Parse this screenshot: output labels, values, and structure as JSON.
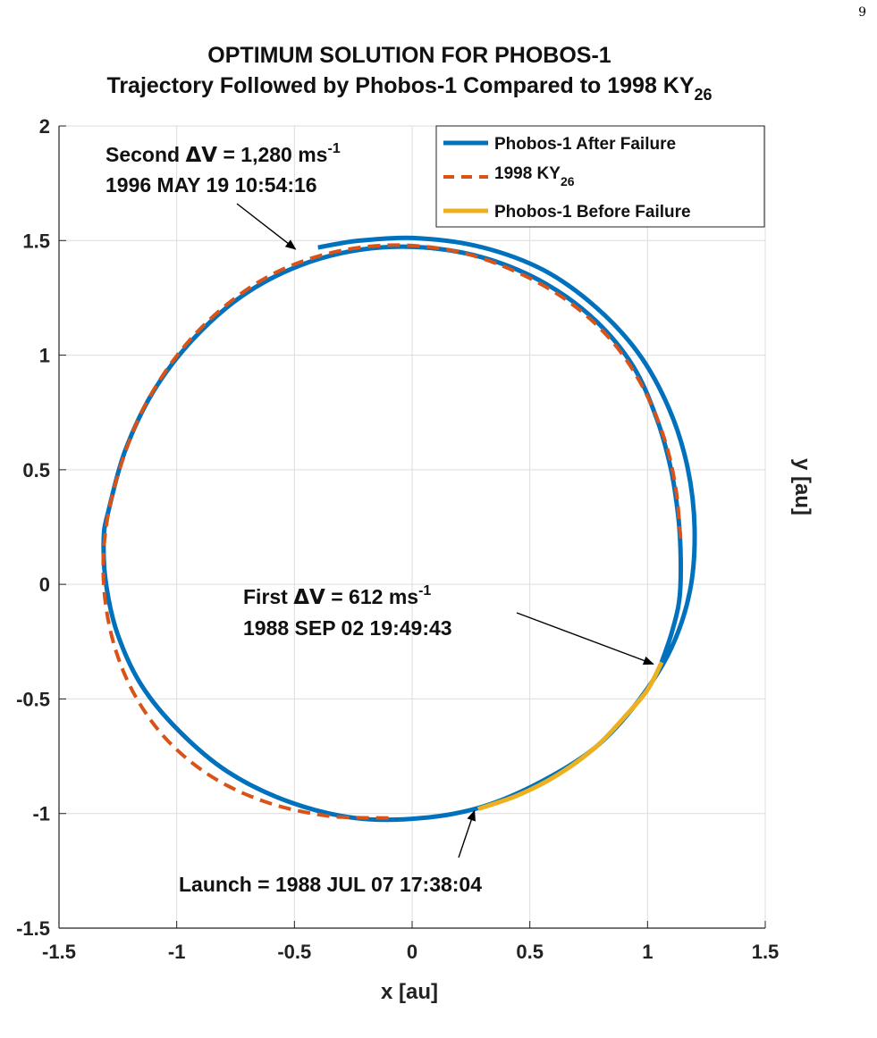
{
  "page": {
    "page_number": "9"
  },
  "chart_data": {
    "type": "line",
    "title": "OPTIMUM SOLUTION FOR PHOBOS-1",
    "subtitle": "Trajectory Followed by Phobos-1 Compared to 1998 KY",
    "subtitle_subscript": "26",
    "xlabel": "x [au]",
    "ylabel": "y [au]",
    "xlim": [
      -1.5,
      1.5
    ],
    "ylim": [
      -1.5,
      2
    ],
    "xticks": [
      -1.5,
      -1,
      -0.5,
      0,
      0.5,
      1,
      1.5
    ],
    "xtick_labels": [
      "-1.5",
      "-1",
      "-0.5",
      "0",
      "0.5",
      "1",
      "1.5"
    ],
    "yticks": [
      -1.5,
      -1,
      -0.5,
      0,
      0.5,
      1,
      1.5,
      2
    ],
    "ytick_labels": [
      "-1.5",
      "-1",
      "-0.5",
      "0",
      "0.5",
      "1",
      "1.5",
      "2"
    ],
    "grid": true,
    "legend_position": "top-right",
    "legend": [
      {
        "label": "Phobos-1 After Failure",
        "subscript": "",
        "color": "#0072BD",
        "style": "solid"
      },
      {
        "label": "1998 KY",
        "subscript": "26",
        "color": "#D95319",
        "style": "dashed"
      },
      {
        "label": "Phobos-1 Before Failure",
        "subscript": "",
        "color": "#EDB120",
        "style": "solid"
      }
    ],
    "series": [
      {
        "name": "Phobos-1 After Failure",
        "color": "#0072BD",
        "style": "solid",
        "points": [
          [
            1.06,
            -0.34
          ],
          [
            1.1,
            -0.22
          ],
          [
            1.13,
            -0.1
          ],
          [
            1.14,
            0.0
          ],
          [
            1.14,
            0.15
          ],
          [
            1.13,
            0.3
          ],
          [
            1.1,
            0.5
          ],
          [
            1.04,
            0.72
          ],
          [
            0.94,
            0.95
          ],
          [
            0.78,
            1.15
          ],
          [
            0.57,
            1.31
          ],
          [
            0.32,
            1.42
          ],
          [
            0.05,
            1.47
          ],
          [
            -0.22,
            1.46
          ],
          [
            -0.48,
            1.39
          ],
          [
            -0.72,
            1.26
          ],
          [
            -0.93,
            1.07
          ],
          [
            -1.1,
            0.84
          ],
          [
            -1.22,
            0.58
          ],
          [
            -1.29,
            0.32
          ],
          [
            -1.31,
            0.2
          ],
          [
            -1.3,
            0.0
          ],
          [
            -1.25,
            -0.22
          ],
          [
            -1.15,
            -0.44
          ],
          [
            -0.99,
            -0.64
          ],
          [
            -0.78,
            -0.82
          ],
          [
            -0.52,
            -0.95
          ],
          [
            -0.24,
            -1.02
          ],
          [
            0.04,
            -1.02
          ],
          [
            0.3,
            -0.97
          ],
          [
            0.55,
            -0.86
          ],
          [
            0.78,
            -0.71
          ],
          [
            0.96,
            -0.51
          ],
          [
            1.1,
            -0.28
          ],
          [
            1.18,
            -0.03
          ],
          [
            1.2,
            0.24
          ],
          [
            1.17,
            0.51
          ],
          [
            1.09,
            0.77
          ],
          [
            0.96,
            1.01
          ],
          [
            0.78,
            1.21
          ],
          [
            0.56,
            1.37
          ],
          [
            0.3,
            1.47
          ],
          [
            0.03,
            1.51
          ],
          [
            -0.22,
            1.5
          ],
          [
            -0.4,
            1.47
          ]
        ]
      },
      {
        "name": "1998 KY26",
        "color": "#D95319",
        "style": "dashed",
        "points": [
          [
            1.14,
            0.2
          ],
          [
            1.12,
            0.42
          ],
          [
            1.07,
            0.64
          ],
          [
            0.98,
            0.86
          ],
          [
            0.85,
            1.06
          ],
          [
            0.67,
            1.23
          ],
          [
            0.45,
            1.36
          ],
          [
            0.2,
            1.45
          ],
          [
            -0.07,
            1.48
          ],
          [
            -0.33,
            1.45
          ],
          [
            -0.58,
            1.36
          ],
          [
            -0.8,
            1.21
          ],
          [
            -0.99,
            1.01
          ],
          [
            -1.14,
            0.77
          ],
          [
            -1.24,
            0.51
          ],
          [
            -1.3,
            0.25
          ],
          [
            -1.31,
            0.0
          ],
          [
            -1.27,
            -0.25
          ],
          [
            -1.18,
            -0.48
          ],
          [
            -1.04,
            -0.68
          ],
          [
            -0.85,
            -0.84
          ],
          [
            -0.62,
            -0.95
          ],
          [
            -0.36,
            -1.01
          ],
          [
            -0.1,
            -1.02
          ]
        ]
      },
      {
        "name": "Phobos-1 Before Failure",
        "color": "#EDB120",
        "style": "solid",
        "points": [
          [
            0.28,
            -0.98
          ],
          [
            0.45,
            -0.92
          ],
          [
            0.62,
            -0.83
          ],
          [
            0.78,
            -0.71
          ],
          [
            0.91,
            -0.57
          ],
          [
            1.0,
            -0.46
          ],
          [
            1.06,
            -0.34
          ]
        ]
      }
    ],
    "annotations": [
      {
        "line1_prefix": "Second ",
        "delta": "ΔV",
        "line1_value": " = 1,280 ms",
        "sup": "-1",
        "line2": "1996 MAY 19 10:54:16",
        "target": [
          -0.48,
          1.47
        ]
      },
      {
        "line1_prefix": "First ",
        "delta": "ΔV",
        "line1_value": " = 612 ms",
        "sup": "-1",
        "line2": "1988 SEP 02 19:49:43",
        "target": [
          1.04,
          -0.34
        ]
      },
      {
        "line1_prefix": "Launch = 1988 JUL 07 17:38:04",
        "delta": "",
        "line1_value": "",
        "sup": "",
        "line2": "",
        "target": [
          0.28,
          -0.98
        ]
      }
    ]
  }
}
